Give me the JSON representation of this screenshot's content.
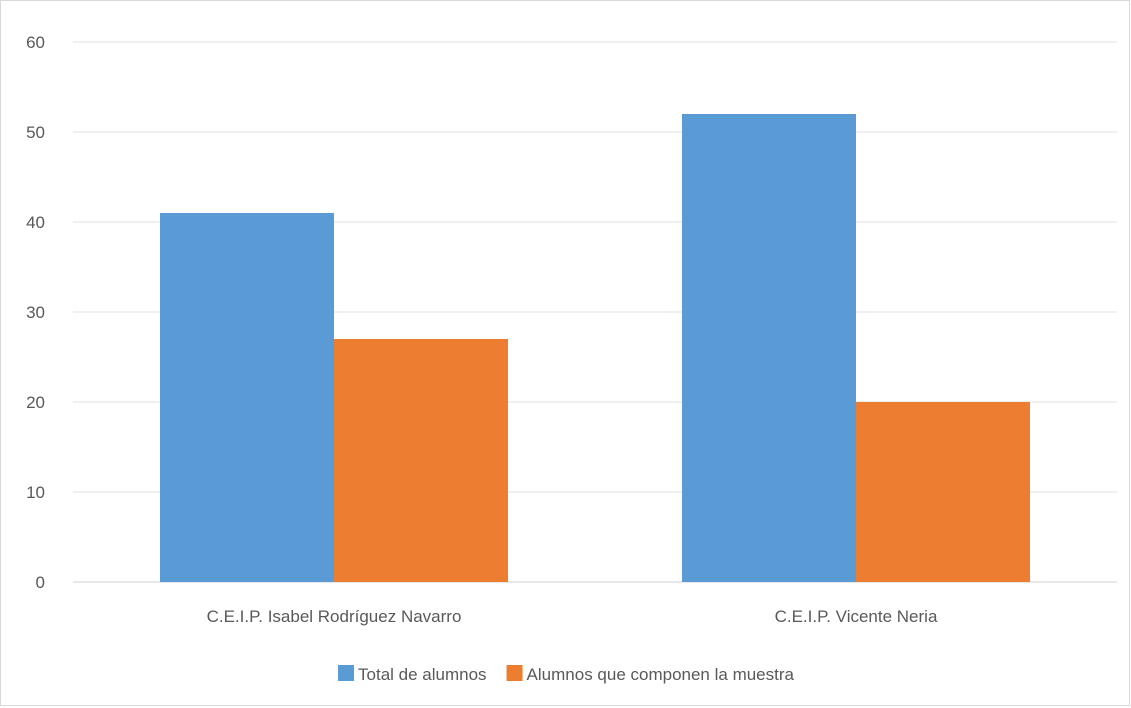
{
  "chart_data": {
    "type": "bar",
    "categories": [
      "C.E.I.P. Isabel Rodríguez Navarro",
      "C.E.I.P. Vicente Neria"
    ],
    "series": [
      {
        "name": "Total de alumnos",
        "values": [
          41,
          52
        ],
        "color": "#5b9bd5"
      },
      {
        "name": "Alumnos que componen la muestra",
        "values": [
          27,
          20
        ],
        "color": "#ed7d31"
      }
    ],
    "ylim": [
      0,
      60
    ],
    "yticks": [
      0,
      10,
      20,
      30,
      40,
      50,
      60
    ],
    "grid": true,
    "legend_position": "bottom"
  }
}
